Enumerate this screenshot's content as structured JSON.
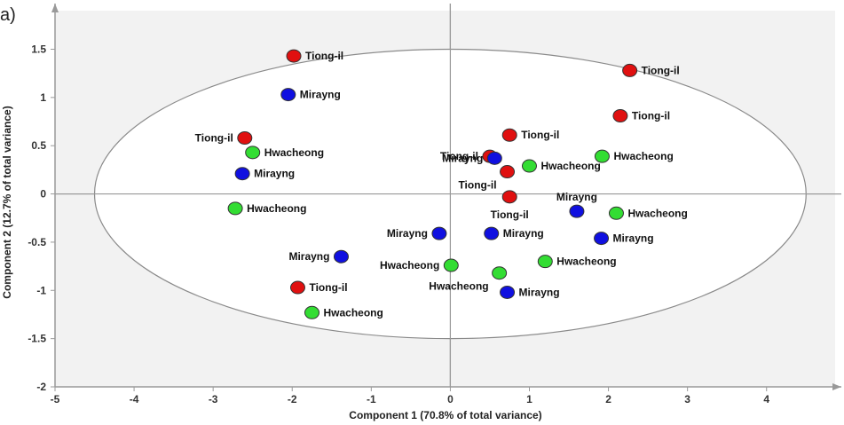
{
  "panel_label": "a)",
  "chart_data": {
    "type": "scatter",
    "title": "",
    "xlabel": "Component 1 (70.8% of total variance)",
    "ylabel": "Component 2 (12.7% of total variance)",
    "xlim": [
      -5,
      4.8
    ],
    "ylim": [
      -2,
      1.9
    ],
    "x_ticks": [
      -5,
      -4,
      -3,
      -2,
      -1,
      0,
      1,
      2,
      3,
      4
    ],
    "y_ticks": [
      -2,
      -1.5,
      -1,
      -0.5,
      0,
      0.5,
      1,
      1.5
    ],
    "ellipse": {
      "center": [
        0,
        0
      ],
      "rx": 4.5,
      "ry": 1.5
    },
    "grid": false,
    "colors": {
      "Tiong-il": "#e01010",
      "Mirayng": "#1010e0",
      "Hwacheong": "#33dd33"
    },
    "points": [
      {
        "group": "Tiong-il",
        "x": -1.98,
        "y": 1.43,
        "label": "Tiong-il",
        "lpos": "right"
      },
      {
        "group": "Tiong-il",
        "x": 2.27,
        "y": 1.28,
        "label": "Tiong-il",
        "lpos": "right"
      },
      {
        "group": "Tiong-il",
        "x": 2.15,
        "y": 0.81,
        "label": "Tiong-il",
        "lpos": "right"
      },
      {
        "group": "Tiong-il",
        "x": -2.6,
        "y": 0.58,
        "label": "Tiong-il",
        "lpos": "left"
      },
      {
        "group": "Tiong-il",
        "x": 0.75,
        "y": 0.61,
        "label": "Tiong-il",
        "lpos": "right"
      },
      {
        "group": "Tiong-il",
        "x": 0.5,
        "y": 0.39,
        "label": "Tiong-il",
        "lpos": "left"
      },
      {
        "group": "Tiong-il",
        "x": 0.72,
        "y": 0.23,
        "label": "Tiong-il",
        "lpos": "belowleft"
      },
      {
        "group": "Tiong-il",
        "x": 0.75,
        "y": -0.03,
        "label": "Tiong-il",
        "lpos": "below"
      },
      {
        "group": "Tiong-il",
        "x": -1.93,
        "y": -0.97,
        "label": "Tiong-il",
        "lpos": "right"
      },
      {
        "group": "Mirayng",
        "x": -2.05,
        "y": 1.03,
        "label": "Mirayng",
        "lpos": "right"
      },
      {
        "group": "Mirayng",
        "x": -2.63,
        "y": 0.21,
        "label": "Mirayng",
        "lpos": "right"
      },
      {
        "group": "Mirayng",
        "x": 0.56,
        "y": 0.37,
        "label": "Mirayng",
        "lpos": "left"
      },
      {
        "group": "Mirayng",
        "x": 1.6,
        "y": -0.18,
        "label": "Mirayng",
        "lpos": "above"
      },
      {
        "group": "Mirayng",
        "x": 1.91,
        "y": -0.46,
        "label": "Mirayng",
        "lpos": "right"
      },
      {
        "group": "Mirayng",
        "x": -0.14,
        "y": -0.41,
        "label": "Mirayng",
        "lpos": "left"
      },
      {
        "group": "Mirayng",
        "x": 0.52,
        "y": -0.41,
        "label": "Mirayng",
        "lpos": "right"
      },
      {
        "group": "Mirayng",
        "x": -1.38,
        "y": -0.65,
        "label": "Mirayng",
        "lpos": "left"
      },
      {
        "group": "Mirayng",
        "x": 0.72,
        "y": -1.02,
        "label": "Mirayng",
        "lpos": "right"
      },
      {
        "group": "Hwacheong",
        "x": -2.5,
        "y": 0.43,
        "label": "Hwacheong",
        "lpos": "right"
      },
      {
        "group": "Hwacheong",
        "x": 1.92,
        "y": 0.39,
        "label": "Hwacheong",
        "lpos": "right"
      },
      {
        "group": "Hwacheong",
        "x": 1.0,
        "y": 0.29,
        "label": "Hwacheong",
        "lpos": "right"
      },
      {
        "group": "Hwacheong",
        "x": -2.72,
        "y": -0.15,
        "label": "Hwacheong",
        "lpos": "right"
      },
      {
        "group": "Hwacheong",
        "x": 2.1,
        "y": -0.2,
        "label": "Hwacheong",
        "lpos": "right"
      },
      {
        "group": "Hwacheong",
        "x": 1.2,
        "y": -0.7,
        "label": "Hwacheong",
        "lpos": "right"
      },
      {
        "group": "Hwacheong",
        "x": 0.01,
        "y": -0.74,
        "label": "Hwacheong",
        "lpos": "left"
      },
      {
        "group": "Hwacheong",
        "x": 0.62,
        "y": -0.82,
        "label": "Hwacheong",
        "lpos": "belowleft"
      },
      {
        "group": "Hwacheong",
        "x": -1.75,
        "y": -1.23,
        "label": "Hwacheong",
        "lpos": "right"
      }
    ]
  }
}
